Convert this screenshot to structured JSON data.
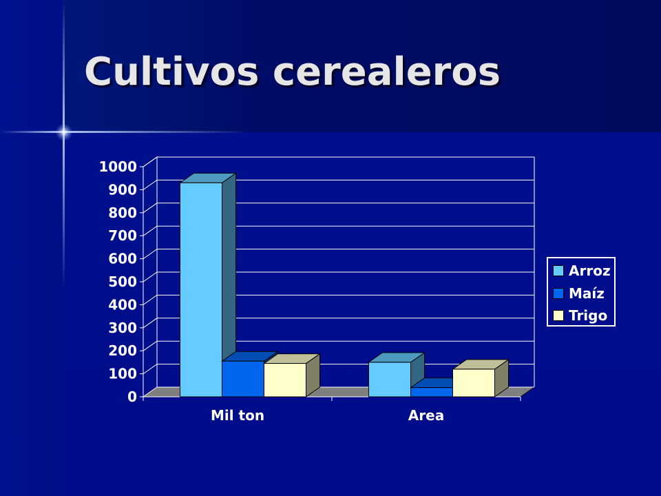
{
  "title": "Cultivos cerealeros",
  "colors": {
    "arroz": "#66ccff",
    "maiz": "#0066ee",
    "trigo": "#ffffcc",
    "background": "#000c8a",
    "floor": "#7f7f7f"
  },
  "chart_data": {
    "type": "bar",
    "categories": [
      "Mil ton",
      "Area"
    ],
    "series": [
      {
        "name": "Arroz",
        "values": [
          930,
          150
        ]
      },
      {
        "name": "Maíz",
        "values": [
          155,
          40
        ]
      },
      {
        "name": "Trigo",
        "values": [
          145,
          120
        ]
      }
    ],
    "ylim": [
      0,
      1000
    ],
    "yticks": [
      "0",
      "100",
      "200",
      "300",
      "400",
      "500",
      "600",
      "700",
      "800",
      "900",
      "1000"
    ],
    "grid": true,
    "legend": "right",
    "style": "3d-clustered"
  }
}
